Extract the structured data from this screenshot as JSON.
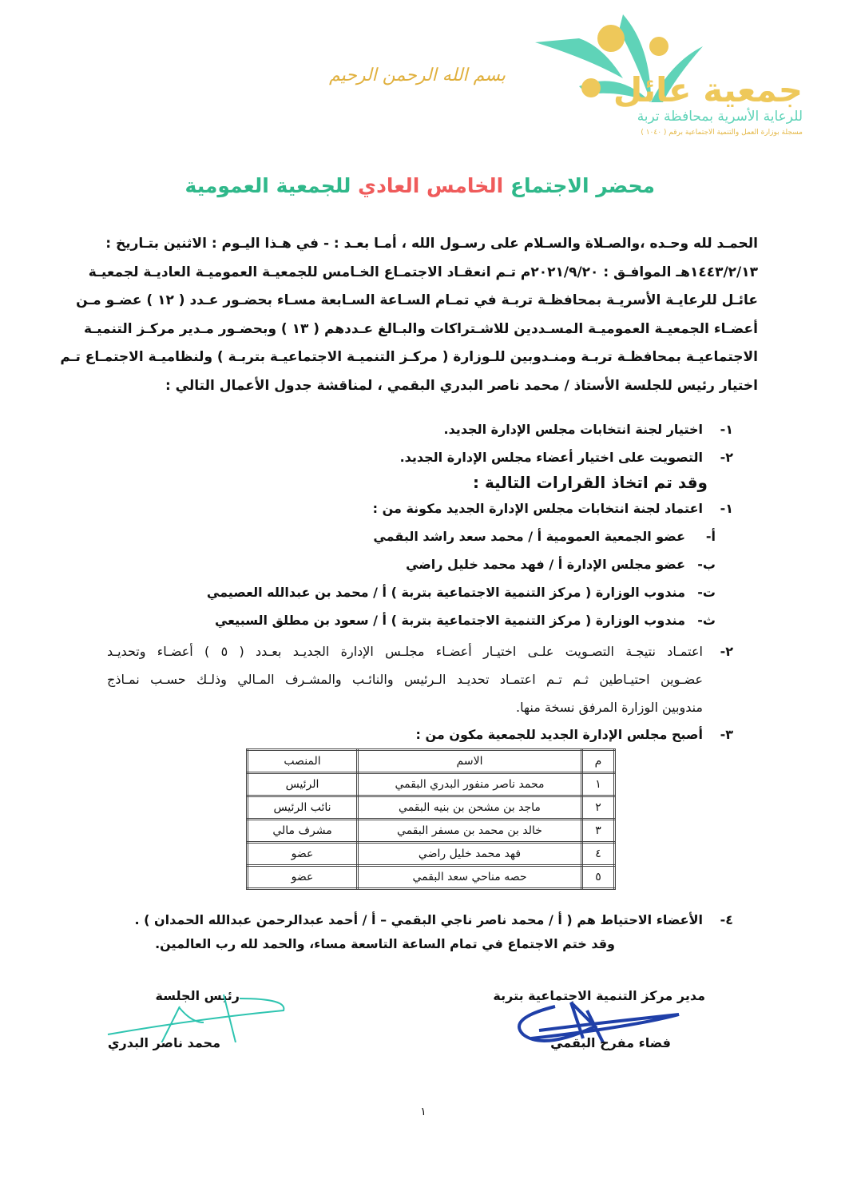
{
  "header": {
    "logo_name": "جمعية عائل",
    "logo_subtitle": "للرعاية الأسرية بمحافظة تربة",
    "logo_registration": "مسجلة بوزارة العمل والتنمية الاجتماعية برقم ( ١٠٤٠ )",
    "basmala": "بسم الله الرحمن الرحيم",
    "logo_colors": {
      "teal": "#5fd3b8",
      "gold": "#eec85a"
    }
  },
  "title": {
    "part1": "محضر الاجتماع",
    "part2_red": "الخامس العادي",
    "part3": "للجمعية العمومية",
    "green": "#2fb88a",
    "red": "#ef5b5b"
  },
  "intro_lines": [
    "الحمـد لله وحـده ،والصـلاة والسـلام على رسـول الله ، أمـا بعـد : - في هـذا اليـوم :   الاثنين  بتـاريخ :",
    "١٤٤٣/٢/١٣هـ  الموافـق : ٢٠٢١/٩/٢٠م تـم انعقـاد الاجتمـاع الخـامس للجمعيـة العموميـة العاديـة لجمعيـة",
    "عائـل للرعايـة الأسريـة بمحافظـة تربـة في تمـام السـاعة السـابعة مسـاء   بحضـور عـدد ( ١٢ ) عضـو مـن",
    "أعضـاء الجمعيـة العموميـة المسـددين للاشـتراكات والبـالغ عـددهم (  ١٣  ) وبحضـور مـدير مركـز التنميـة",
    "الاجتماعيـة بمحافظـة تربـة ومنـدوبين للـوزارة ( مركـز التنميـة الاجتماعيـة بتربـة ) ولنظاميـة الاجتمـاع تـم",
    "اختيار رئيس للجلسة الأستاذ / محمد ناصر البدري البقمي ،  لمناقشة جدول الأعمال التالي :"
  ],
  "agenda": [
    {
      "num": "١-",
      "text": "اختيار لجنة انتخابات مجلس الإدارة الجديد."
    },
    {
      "num": "٢-",
      "text": "التصويت على اختيار أعضاء مجلس الإدارة الجديد."
    }
  ],
  "decisions_heading": "وقد تم اتخاذ القرارات التالية :",
  "decision1": {
    "num": "١-",
    "text": "اعتماد لجنة انتخابات مجلس الإدارة الجديد مكونة من :",
    "members": [
      {
        "letter": "أ-",
        "text": "عضو الجمعية العمومية أ / محمد سعد راشد البقمي"
      },
      {
        "letter": "ب-",
        "text": "عضو مجلس الإدارة   أ / فهد محمد خليل راضي"
      },
      {
        "letter": "ت-",
        "text": "مندوب الوزارة ( مركز التنمية الاجتماعية بتربة ) أ / محمد بن عبدالله العصيمي"
      },
      {
        "letter": "ث-",
        "text": "مندوب الوزارة ( مركز التنمية الاجتماعية بتربة ) أ / سعود بن مطلق السبيعي"
      }
    ]
  },
  "decision2": {
    "num": "٢-",
    "lines": [
      "اعتمـاد نتيجـة التصـويت علـى اختيـار أعضـاء مجلـس الإدارة الجديـد بعـدد ( ٥ ) أعضـاء وتحديـد",
      "عضـوين احتيـاطين ثـم تـم اعتمـاد تحديـد الـرئيس والنائـب والمشـرف المـالي وذلـك حسـب نمـاذج",
      "مندوبين الوزارة المرفق نسخة منها."
    ]
  },
  "decision3": {
    "num": "٣-",
    "text": "أصبح مجلس الإدارة الجديد للجمعية مكون من :"
  },
  "board_table": {
    "headers": [
      "م",
      "الاسم",
      "المنصب"
    ],
    "rows": [
      [
        "١",
        "محمد ناصر منفور البدري البقمي",
        "الرئيس"
      ],
      [
        "٢",
        "ماجد بن مشحن بن بنيه البقمي",
        "نائب الرئيس"
      ],
      [
        "٣",
        "خالد بن محمد بن مسفر البقمي",
        "مشرف مالي"
      ],
      [
        "٤",
        "فهد محمد خليل راضي",
        "عضو"
      ],
      [
        "٥",
        "حصه مناحي سعد البقمي",
        "عضو"
      ]
    ]
  },
  "decision4": {
    "num": "٤-",
    "text": "الأعضاء الاحتياط هم ( أ / محمد ناصر ناجي البقمي – أ / أحمد عبدالرحمن عبدالله الحمدان ) ."
  },
  "closing": "وقد ختم الاجتماع في تمام الساعة التاسعة مساء، والحمد لله رب العالمين.",
  "signatures": {
    "right_title": "مدير مركز التنمية الاجتماعية بتربة",
    "right_name": "فضاء مفرح البقمي",
    "left_title": "رئيس الجلسة",
    "left_name": "محمد ناصر البدري",
    "right_ink": "#1f3fa8",
    "left_ink": "#2ec4b0"
  },
  "page_number": "١"
}
